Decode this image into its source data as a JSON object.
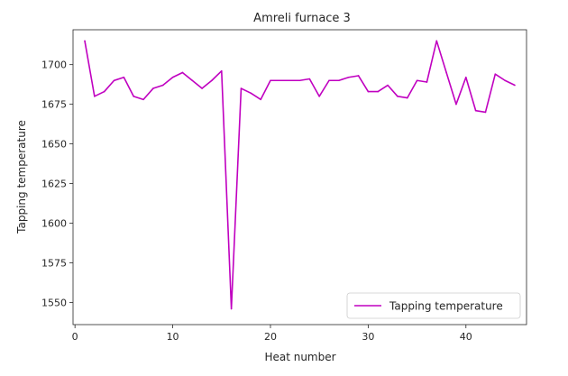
{
  "chart_data": {
    "type": "line",
    "title": "Amreli furnace 3",
    "xlabel": "Heat number",
    "ylabel": "Tapping temperature",
    "xlim": [
      -0.2,
      46.2
    ],
    "ylim": [
      1536,
      1722
    ],
    "xticks": [
      0,
      10,
      20,
      30,
      40
    ],
    "yticks": [
      1550,
      1575,
      1600,
      1625,
      1650,
      1675,
      1700
    ],
    "grid": false,
    "legend_position": "lower right",
    "series": [
      {
        "name": "Tapping temperature",
        "color": "#c000c0",
        "x": [
          1,
          2,
          3,
          4,
          5,
          6,
          7,
          8,
          9,
          10,
          11,
          12,
          13,
          14,
          15,
          16,
          17,
          18,
          19,
          20,
          21,
          22,
          23,
          24,
          25,
          26,
          27,
          28,
          29,
          30,
          31,
          32,
          33,
          34,
          35,
          36,
          37,
          38,
          39,
          40,
          41,
          42,
          43,
          44,
          45
        ],
        "y": [
          1715,
          1680,
          1683,
          1690,
          1692,
          1680,
          1678,
          1685,
          1687,
          1692,
          1695,
          1690,
          1685,
          1690,
          1696,
          1546,
          1685,
          1682,
          1678,
          1690,
          1690,
          1690,
          1690,
          1691,
          1680,
          1690,
          1690,
          1692,
          1693,
          1683,
          1683,
          1687,
          1680,
          1679,
          1690,
          1689,
          1715,
          1695,
          1675,
          1692,
          1671,
          1670,
          1694,
          1690,
          1687
        ]
      }
    ]
  }
}
